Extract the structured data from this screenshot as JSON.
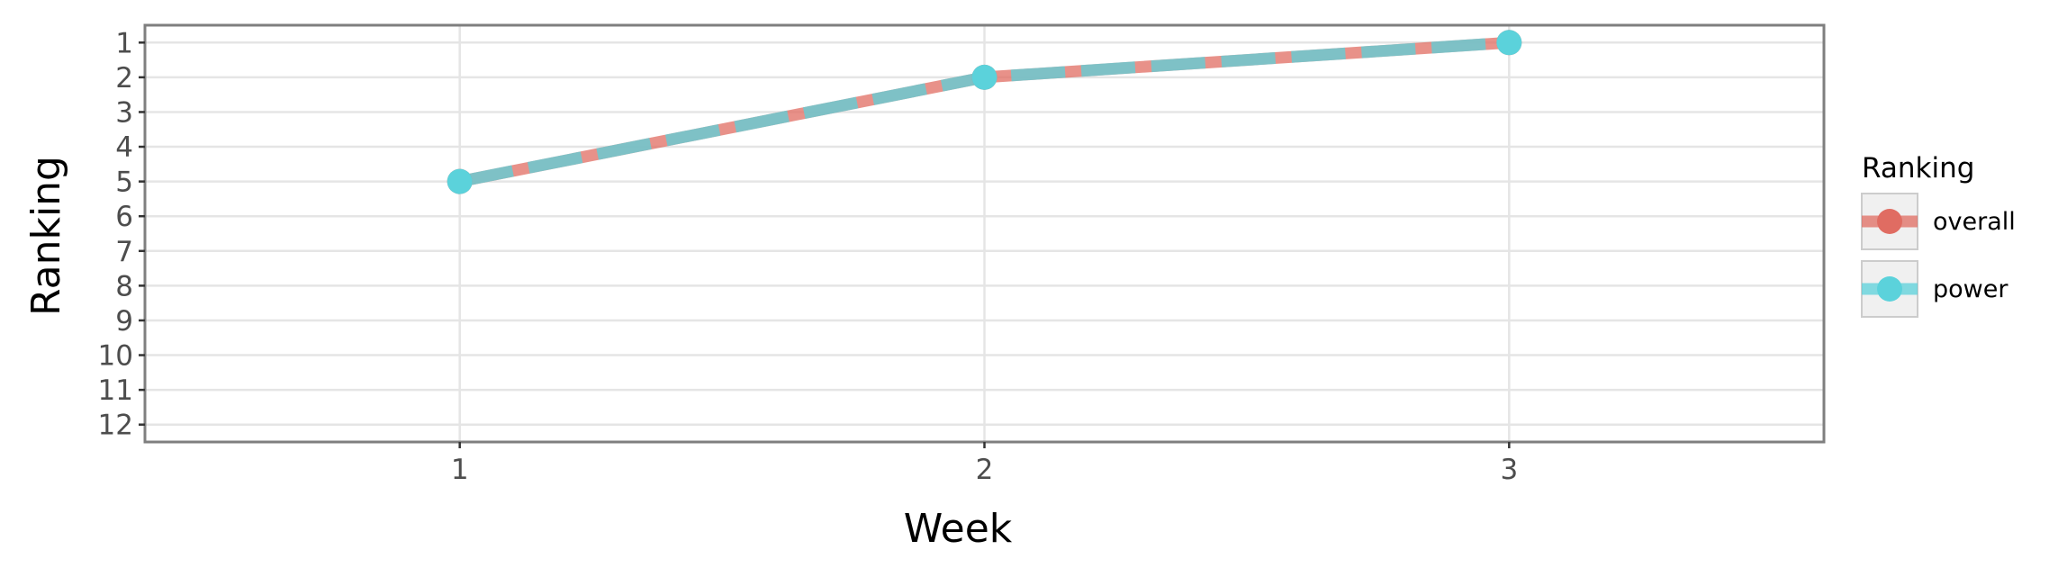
{
  "chart_data": {
    "type": "line",
    "xlabel": "Week",
    "ylabel": "Ranking",
    "x": [
      1,
      2,
      3
    ],
    "x_ticks": [
      1,
      2,
      3
    ],
    "xlim": [
      0.4,
      3.6
    ],
    "y_ticks": [
      1,
      2,
      3,
      4,
      5,
      6,
      7,
      8,
      9,
      10,
      11,
      12
    ],
    "ylim": [
      12.5,
      0.5
    ],
    "y_reversed": true,
    "grid": true,
    "legend": {
      "title": "Ranking",
      "placement": "right"
    },
    "series": [
      {
        "name": "overall",
        "values": [
          5,
          2,
          1
        ],
        "color": "#E06C62",
        "line_style": "solid"
      },
      {
        "name": "power",
        "values": [
          5,
          2,
          1
        ],
        "color": "#5BD2DB",
        "line_style": "dashed"
      }
    ],
    "colors": {
      "panel_border": "#7f7f7f",
      "grid": "#e5e5e5",
      "legend_key_bg": "#f0f0f0"
    }
  }
}
